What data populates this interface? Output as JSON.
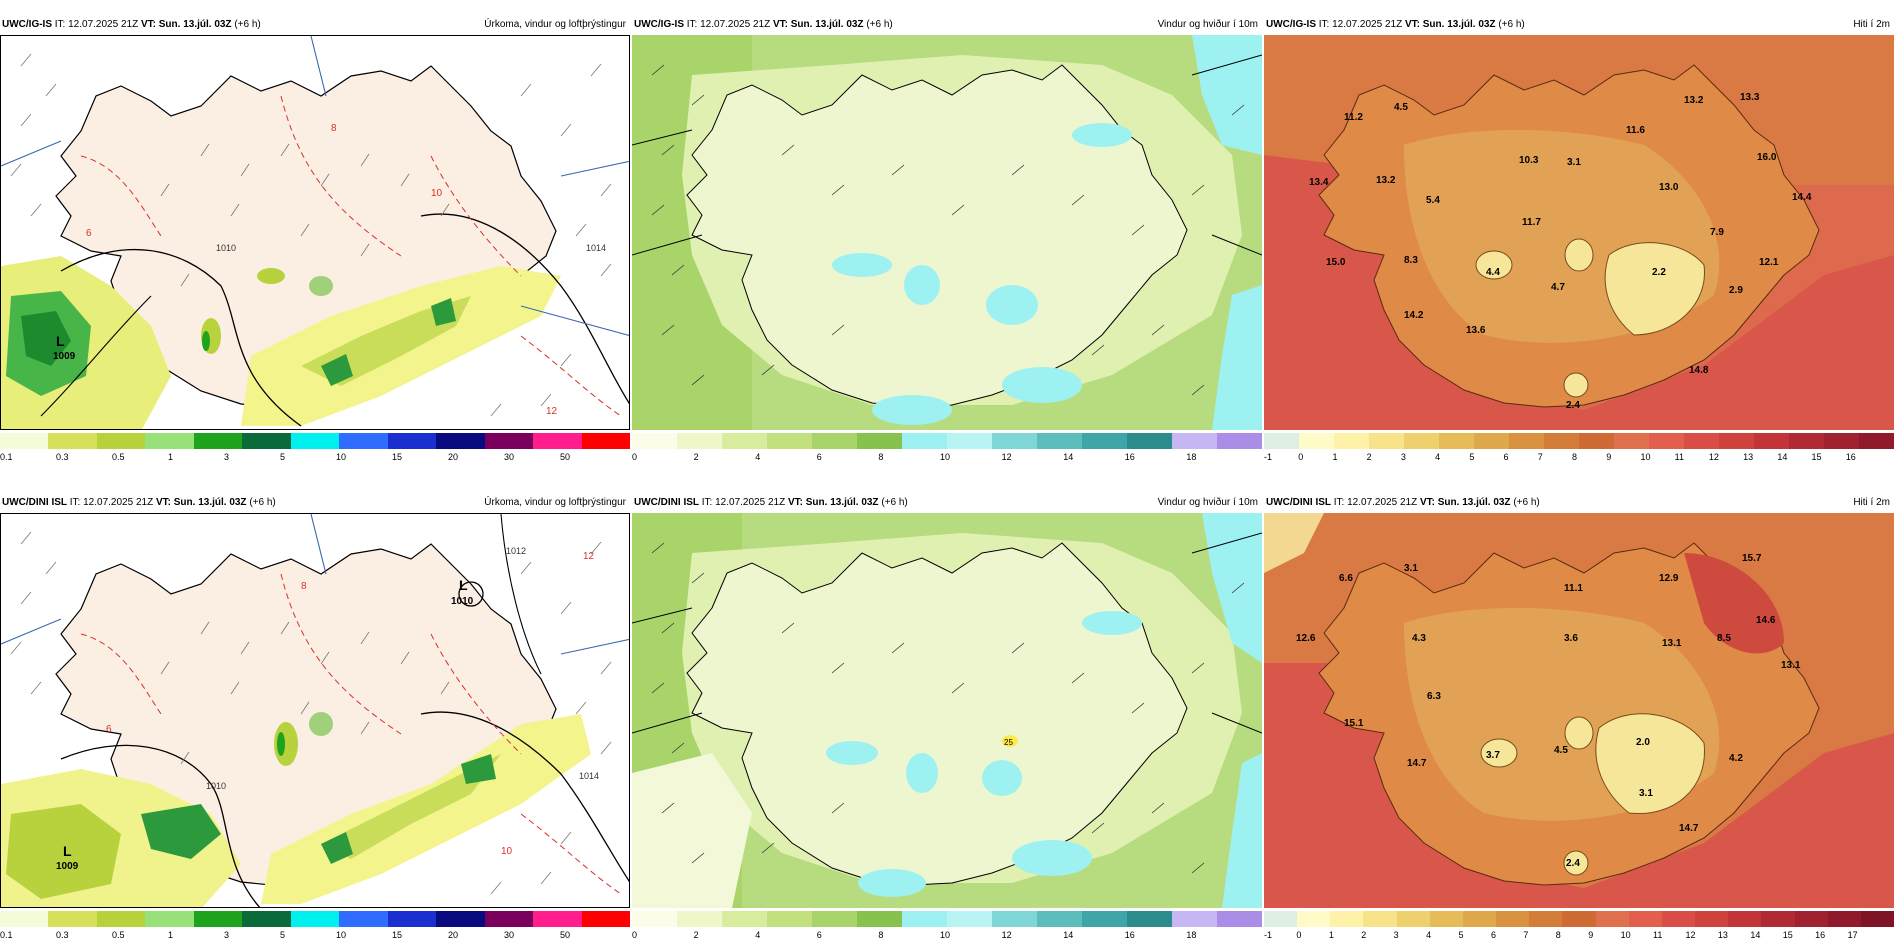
{
  "rows": [
    {
      "model": "UWC/IG-IS",
      "panels": [
        {
          "type": "precip",
          "it_label": "IT:",
          "it_value": "12.07.2025 21Z",
          "vt_text": "VT: Sun. 13.júl. 03Z",
          "lead": "(+6 h)",
          "title": "Úrkoma, vindur og loftþrýstingur",
          "map_labels": [
            {
              "text": "L",
              "kind": "low"
            },
            {
              "text": "1009",
              "kind": "pressure"
            },
            {
              "text": "1010",
              "kind": "pressure"
            },
            {
              "text": "1014",
              "kind": "pressure"
            },
            {
              "text": "12",
              "kind": "temp"
            },
            {
              "text": "10",
              "kind": "temp"
            },
            {
              "text": "8",
              "kind": "temp"
            },
            {
              "text": "6",
              "kind": "temp"
            }
          ],
          "legend_ticks": [
            "0.1",
            "0.3",
            "0.5",
            "1",
            "3",
            "5",
            "10",
            "15",
            "20",
            "30",
            "50"
          ]
        },
        {
          "type": "wind",
          "it_label": "IT:",
          "it_value": "12.07.2025 21Z",
          "vt_text": "VT: Sun. 13.júl. 03Z",
          "lead": "(+6 h)",
          "title": "Vindur og hviður í 10m",
          "map_labels": [],
          "legend_ticks": [
            "0",
            "2",
            "4",
            "6",
            "8",
            "10",
            "12",
            "14",
            "16",
            "18"
          ]
        },
        {
          "type": "temp",
          "it_label": "IT:",
          "it_value": "12.07.2025 21Z",
          "vt_text": "VT: Sun. 13.júl. 03Z",
          "lead": "(+6 h)",
          "title": "Hiti í 2m",
          "map_labels": [
            {
              "text": "11.2"
            },
            {
              "text": "4.5"
            },
            {
              "text": "13.4"
            },
            {
              "text": "13.2"
            },
            {
              "text": "5.4"
            },
            {
              "text": "15.0"
            },
            {
              "text": "8.3"
            },
            {
              "text": "14.2"
            },
            {
              "text": "13.6"
            },
            {
              "text": "4.4"
            },
            {
              "text": "10.3"
            },
            {
              "text": "3.1"
            },
            {
              "text": "11.7"
            },
            {
              "text": "4.7"
            },
            {
              "text": "11.6"
            },
            {
              "text": "13.2"
            },
            {
              "text": "13.3"
            },
            {
              "text": "16.0"
            },
            {
              "text": "13.0"
            },
            {
              "text": "14.4"
            },
            {
              "text": "7.9"
            },
            {
              "text": "2.2"
            },
            {
              "text": "12.1"
            },
            {
              "text": "2.9"
            },
            {
              "text": "14.8"
            },
            {
              "text": "2.4"
            }
          ],
          "legend_ticks": [
            "-1",
            "0",
            "1",
            "2",
            "3",
            "4",
            "5",
            "6",
            "7",
            "8",
            "9",
            "10",
            "11",
            "12",
            "13",
            "14",
            "15",
            "16"
          ]
        }
      ]
    },
    {
      "model": "UWC/DINI ISL",
      "panels": [
        {
          "type": "precip",
          "it_label": "IT:",
          "it_value": "12.07.2025 21Z",
          "vt_text": "VT: Sun. 13.júl. 03Z",
          "lead": "(+6 h)",
          "title": "Úrkoma, vindur og loftþrýstingur",
          "map_labels": [
            {
              "text": "L",
              "kind": "low"
            },
            {
              "text": "1009",
              "kind": "pressure"
            },
            {
              "text": "L",
              "kind": "low"
            },
            {
              "text": "1010",
              "kind": "pressure"
            },
            {
              "text": "1010",
              "kind": "pressure"
            },
            {
              "text": "1012",
              "kind": "pressure"
            },
            {
              "text": "1014",
              "kind": "pressure"
            },
            {
              "text": "12",
              "kind": "temp"
            },
            {
              "text": "10",
              "kind": "temp"
            },
            {
              "text": "8",
              "kind": "temp"
            },
            {
              "text": "6",
              "kind": "temp"
            }
          ],
          "legend_ticks": [
            "0.1",
            "0.3",
            "0.5",
            "1",
            "3",
            "5",
            "10",
            "15",
            "20",
            "30",
            "50"
          ]
        },
        {
          "type": "wind",
          "it_label": "IT:",
          "it_value": "12.07.2025 21Z",
          "vt_text": "VT: Sun. 13.júl. 03Z",
          "lead": "(+6 h)",
          "title": "Vindur og hviður í 10m",
          "map_labels": [
            {
              "text": "25"
            }
          ],
          "legend_ticks": [
            "0",
            "2",
            "4",
            "6",
            "8",
            "10",
            "12",
            "14",
            "16",
            "18"
          ]
        },
        {
          "type": "temp",
          "it_label": "IT:",
          "it_value": "12.07.2025 21Z",
          "vt_text": "VT: Sun. 13.júl. 03Z",
          "lead": "(+6 h)",
          "title": "Hiti í 2m",
          "map_labels": [
            {
              "text": "6.6"
            },
            {
              "text": "3.1"
            },
            {
              "text": "12.6"
            },
            {
              "text": "4.3"
            },
            {
              "text": "6.3"
            },
            {
              "text": "15.1"
            },
            {
              "text": "3.7"
            },
            {
              "text": "14.7"
            },
            {
              "text": "3.6"
            },
            {
              "text": "4.5"
            },
            {
              "text": "11.1"
            },
            {
              "text": "12.9"
            },
            {
              "text": "15.7"
            },
            {
              "text": "13.1"
            },
            {
              "text": "8.5"
            },
            {
              "text": "14.6"
            },
            {
              "text": "13.1"
            },
            {
              "text": "2.0"
            },
            {
              "text": "4.2"
            },
            {
              "text": "3.1"
            },
            {
              "text": "14.7"
            },
            {
              "text": "2.4"
            }
          ],
          "legend_ticks": [
            "-1",
            "0",
            "1",
            "2",
            "3",
            "4",
            "5",
            "6",
            "7",
            "8",
            "9",
            "10",
            "11",
            "12",
            "13",
            "14",
            "15",
            "16",
            "17"
          ]
        }
      ]
    }
  ],
  "legends": {
    "precip_colors": [
      "#f4fbd8",
      "#d6e05a",
      "#b7d23c",
      "#98e07a",
      "#1ea31e",
      "#0a6a3a",
      "#00f0f0",
      "#2f6cff",
      "#1b2fd0",
      "#0a0a80",
      "#7b005e",
      "#ff1e8c",
      "#ff0000"
    ],
    "wind_colors": [
      "#fbfde8",
      "#eff7c8",
      "#d8ec9e",
      "#c2e17e",
      "#a8d46a",
      "#86c24d",
      "#9ef1f1",
      "#b8f4f4",
      "#7ed6d6",
      "#5dbdbd",
      "#3ea6a6",
      "#2c8c8c",
      "#c7b6f4",
      "#a98de6"
    ],
    "temp_colors": [
      "#dfeee2",
      "#fffbc8",
      "#fdf2a8",
      "#f7e48a",
      "#eed06c",
      "#e5bc58",
      "#dfa84a",
      "#d99340",
      "#d47d38",
      "#cf6a34",
      "#e0704e",
      "#e25f4e",
      "#d94e46",
      "#d0423e",
      "#c23438",
      "#b02a34",
      "#a02230",
      "#901a2c",
      "#7f1426"
    ]
  }
}
